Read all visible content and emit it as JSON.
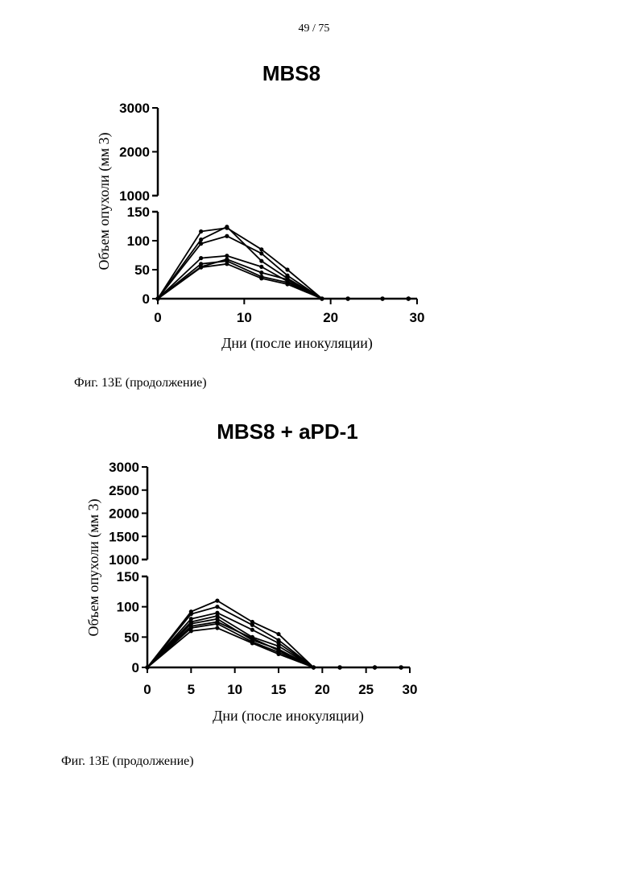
{
  "page": {
    "number": "49 / 75"
  },
  "captions": [
    "Фиг. 13Е (продолжение)",
    "Фиг. 13Е (продолжение)"
  ],
  "chart_data": [
    {
      "type": "line",
      "title": "MBS8",
      "xlabel": "Дни (после инокуляции)",
      "ylabel": "Объем опухоли (мм 3)",
      "xlim": [
        0,
        30
      ],
      "x_ticks": [
        "0",
        "10",
        "20",
        "30"
      ],
      "y_axis_break": true,
      "ylim_lower": [
        0,
        150
      ],
      "ylim_upper": [
        1000,
        3000
      ],
      "y_ticks_lower": [
        "0",
        "50",
        "100",
        "150"
      ],
      "y_ticks_upper": [
        "1000",
        "2000",
        "3000"
      ],
      "grid": false,
      "x": [
        0,
        5,
        8,
        12,
        15,
        19,
        22,
        26,
        29
      ],
      "series": [
        {
          "values": [
            0,
            116,
            122,
            85,
            50,
            0,
            0,
            0,
            0
          ]
        },
        {
          "values": [
            0,
            102,
            124,
            65,
            35,
            0,
            0,
            0,
            0
          ]
        },
        {
          "values": [
            0,
            95,
            108,
            78,
            40,
            0,
            0,
            0,
            0
          ]
        },
        {
          "values": [
            0,
            70,
            74,
            55,
            30,
            0,
            0,
            0,
            0
          ]
        },
        {
          "values": [
            0,
            55,
            68,
            45,
            33,
            0,
            0,
            0,
            0
          ]
        },
        {
          "values": [
            0,
            54,
            60,
            35,
            25,
            0,
            0,
            0,
            0
          ]
        },
        {
          "values": [
            0,
            60,
            65,
            38,
            28,
            0,
            0,
            0,
            0
          ]
        }
      ]
    },
    {
      "type": "line",
      "title": "MBS8 + aPD-1",
      "xlabel": "Дни (после инокуляции)",
      "ylabel": "Объем опухоли (мм 3)",
      "xlim": [
        0,
        30
      ],
      "x_ticks": [
        "0",
        "5",
        "10",
        "15",
        "20",
        "25",
        "30"
      ],
      "y_axis_break": true,
      "ylim_lower": [
        0,
        150
      ],
      "ylim_upper": [
        1000,
        3000
      ],
      "y_ticks_lower": [
        "0",
        "50",
        "100",
        "150"
      ],
      "y_ticks_upper": [
        "1000",
        "1500",
        "2000",
        "2500",
        "3000"
      ],
      "grid": false,
      "x": [
        0,
        5,
        8,
        12,
        15,
        19,
        22,
        26,
        29
      ],
      "series": [
        {
          "values": [
            0,
            92,
            110,
            75,
            55,
            0,
            0,
            0,
            0
          ]
        },
        {
          "values": [
            0,
            88,
            100,
            70,
            45,
            0,
            0,
            0,
            0
          ]
        },
        {
          "values": [
            0,
            80,
            90,
            62,
            40,
            0,
            0,
            0,
            0
          ]
        },
        {
          "values": [
            0,
            75,
            85,
            50,
            35,
            0,
            0,
            0,
            0
          ]
        },
        {
          "values": [
            0,
            72,
            80,
            45,
            30,
            0,
            0,
            0,
            0
          ]
        },
        {
          "values": [
            0,
            68,
            75,
            48,
            28,
            0,
            0,
            0,
            0
          ]
        },
        {
          "values": [
            0,
            65,
            72,
            42,
            25,
            0,
            0,
            0,
            0
          ]
        },
        {
          "values": [
            0,
            60,
            65,
            40,
            22,
            0,
            0,
            0,
            0
          ]
        }
      ]
    }
  ]
}
